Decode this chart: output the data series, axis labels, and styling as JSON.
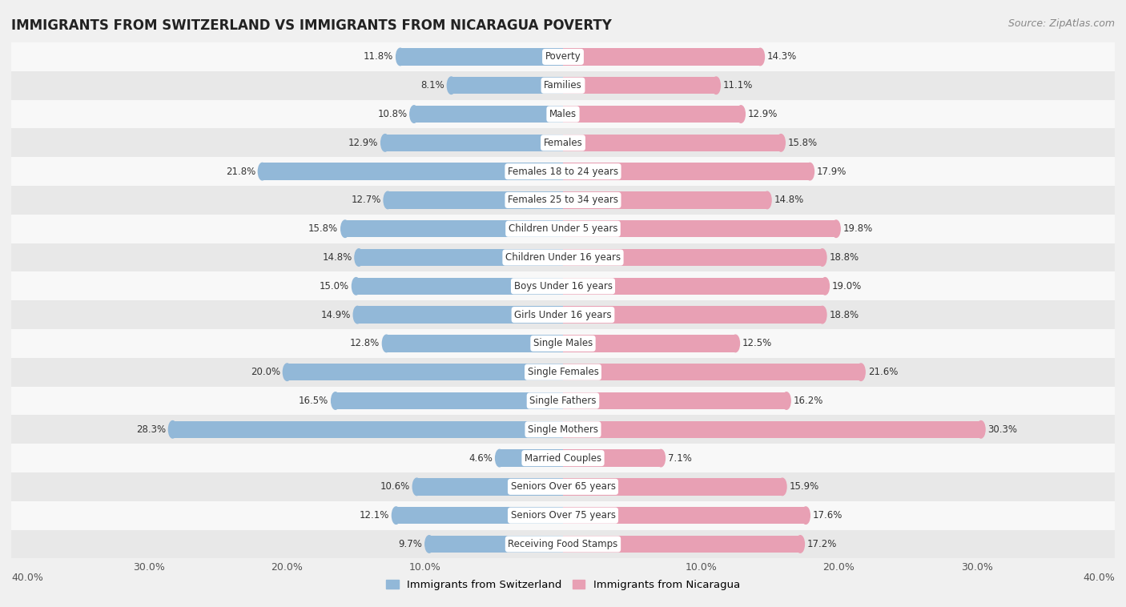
{
  "title": "IMMIGRANTS FROM SWITZERLAND VS IMMIGRANTS FROM NICARAGUA POVERTY",
  "source": "Source: ZipAtlas.com",
  "categories": [
    "Poverty",
    "Families",
    "Males",
    "Females",
    "Females 18 to 24 years",
    "Females 25 to 34 years",
    "Children Under 5 years",
    "Children Under 16 years",
    "Boys Under 16 years",
    "Girls Under 16 years",
    "Single Males",
    "Single Females",
    "Single Fathers",
    "Single Mothers",
    "Married Couples",
    "Seniors Over 65 years",
    "Seniors Over 75 years",
    "Receiving Food Stamps"
  ],
  "switzerland_values": [
    11.8,
    8.1,
    10.8,
    12.9,
    21.8,
    12.7,
    15.8,
    14.8,
    15.0,
    14.9,
    12.8,
    20.0,
    16.5,
    28.3,
    4.6,
    10.6,
    12.1,
    9.7
  ],
  "nicaragua_values": [
    14.3,
    11.1,
    12.9,
    15.8,
    17.9,
    14.8,
    19.8,
    18.8,
    19.0,
    18.8,
    12.5,
    21.6,
    16.2,
    30.3,
    7.1,
    15.9,
    17.6,
    17.2
  ],
  "switzerland_color": "#92b8d8",
  "nicaragua_color": "#e8a0b4",
  "background_color": "#f0f0f0",
  "row_color_even": "#f8f8f8",
  "row_color_odd": "#e8e8e8",
  "xlim": 40.0,
  "legend_switzerland": "Immigrants from Switzerland",
  "legend_nicaragua": "Immigrants from Nicaragua",
  "bar_height": 0.6,
  "label_fontsize": 8.5,
  "title_fontsize": 12,
  "source_fontsize": 9
}
